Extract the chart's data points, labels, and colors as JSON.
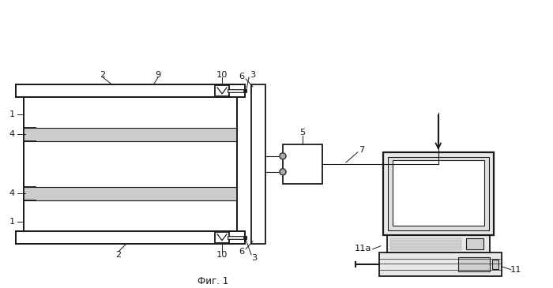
{
  "title": "Фиг. 1",
  "bg_color": "#ffffff",
  "lc": "#1a1a1a",
  "lc_thin": "#444444"
}
